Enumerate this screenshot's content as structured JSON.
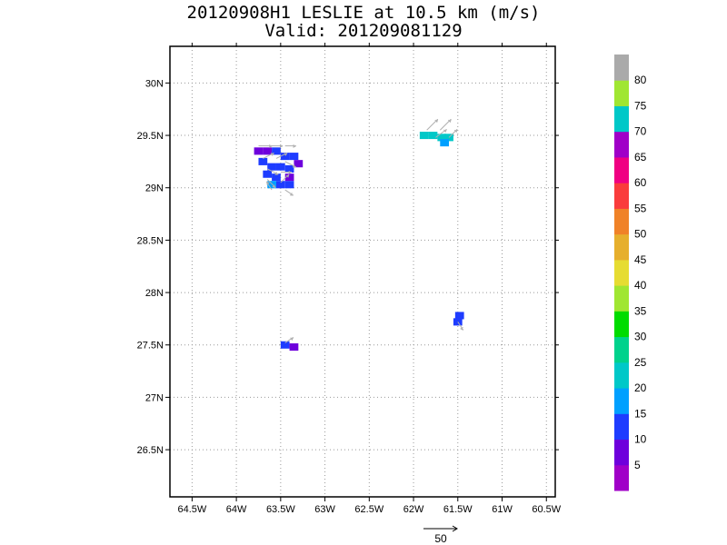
{
  "title_line1": "20120908H1 LESLIE at 10.5 km (m/s)",
  "title_line2": "Valid: 201209081129",
  "chart_data": {
    "type": "heatmap",
    "title": "20120908H1 LESLIE at 10.5 km (m/s)",
    "subtitle": "Valid: 201209081129",
    "xlim": [
      -64.75,
      -60.4
    ],
    "ylim": [
      26.05,
      30.35
    ],
    "x_ticks": [
      -64.5,
      -64,
      -63.5,
      -63,
      -62.5,
      -62,
      -61.5,
      -61,
      -60.5
    ],
    "x_tick_labels": [
      "64.5W",
      "64W",
      "63.5W",
      "63W",
      "62.5W",
      "62W",
      "61.5W",
      "61W",
      "60.5W"
    ],
    "y_ticks": [
      26.5,
      27,
      27.5,
      28,
      28.5,
      29,
      29.5,
      30
    ],
    "y_tick_labels": [
      "26.5N",
      "27N",
      "27.5N",
      "28N",
      "28.5N",
      "29N",
      "29.5N",
      "30N"
    ],
    "grid": "dotted",
    "colorbar": {
      "colors": [
        "#a000c8",
        "#6e00dc",
        "#1e3cff",
        "#00a0ff",
        "#00c8c8",
        "#00d28c",
        "#00dc00",
        "#a0e632",
        "#e6dc32",
        "#e6af2d",
        "#f08228",
        "#fa3c3c",
        "#f00082",
        "#a000c8",
        "#00c8c8",
        "#a0e632",
        "#aaaaaa"
      ],
      "labels": [
        "5",
        "10",
        "15",
        "20",
        "25",
        "30",
        "35",
        "40",
        "45",
        "50",
        "55",
        "60",
        "65",
        "70",
        "75",
        "80"
      ]
    },
    "cells": [
      {
        "x": -63.75,
        "y": 29.35,
        "v": 8
      },
      {
        "x": -63.65,
        "y": 29.35,
        "v": 7
      },
      {
        "x": -63.55,
        "y": 29.35,
        "v": 12
      },
      {
        "x": -63.45,
        "y": 29.3,
        "v": 13
      },
      {
        "x": -63.35,
        "y": 29.3,
        "v": 13
      },
      {
        "x": -63.3,
        "y": 29.23,
        "v": 8
      },
      {
        "x": -63.7,
        "y": 29.25,
        "v": 13
      },
      {
        "x": -63.6,
        "y": 29.2,
        "v": 13
      },
      {
        "x": -63.5,
        "y": 29.2,
        "v": 13
      },
      {
        "x": -63.4,
        "y": 29.18,
        "v": 14
      },
      {
        "x": -63.65,
        "y": 29.13,
        "v": 14
      },
      {
        "x": -63.55,
        "y": 29.1,
        "v": 13
      },
      {
        "x": -63.4,
        "y": 29.1,
        "v": 8
      },
      {
        "x": -63.6,
        "y": 29.03,
        "v": 18
      },
      {
        "x": -63.5,
        "y": 29.03,
        "v": 13
      },
      {
        "x": -63.4,
        "y": 29.03,
        "v": 13
      },
      {
        "x": -61.88,
        "y": 29.5,
        "v": 24
      },
      {
        "x": -61.78,
        "y": 29.5,
        "v": 22
      },
      {
        "x": -61.68,
        "y": 29.48,
        "v": 22
      },
      {
        "x": -61.6,
        "y": 29.48,
        "v": 24
      },
      {
        "x": -61.65,
        "y": 29.43,
        "v": 19
      },
      {
        "x": -63.45,
        "y": 27.5,
        "v": 13
      },
      {
        "x": -63.35,
        "y": 27.48,
        "v": 8
      },
      {
        "x": -61.5,
        "y": 27.72,
        "v": 13
      },
      {
        "x": -61.48,
        "y": 27.78,
        "v": 13
      }
    ],
    "vectors": [
      {
        "x": -63.75,
        "y": 29.4,
        "u": 5,
        "v": 0
      },
      {
        "x": -63.6,
        "y": 29.4,
        "u": 4,
        "v": 0
      },
      {
        "x": -63.45,
        "y": 29.4,
        "u": 4,
        "v": 0
      },
      {
        "x": -63.7,
        "y": 29.28,
        "u": 4,
        "v": -2
      },
      {
        "x": -63.55,
        "y": 29.28,
        "u": 4,
        "v": -2
      },
      {
        "x": -63.45,
        "y": 29.25,
        "u": 4,
        "v": 2
      },
      {
        "x": -63.65,
        "y": 29.18,
        "u": 4,
        "v": 2
      },
      {
        "x": -63.5,
        "y": 29.15,
        "u": 4,
        "v": 0
      },
      {
        "x": -63.65,
        "y": 29.08,
        "u": 3,
        "v": 3
      },
      {
        "x": -63.5,
        "y": 29.05,
        "u": 3,
        "v": -3
      },
      {
        "x": -63.6,
        "y": 28.98,
        "u": -2,
        "v": -3
      },
      {
        "x": -63.45,
        "y": 28.98,
        "u": 3,
        "v": 2
      },
      {
        "x": -61.85,
        "y": 29.55,
        "u": 4,
        "v": -4
      },
      {
        "x": -61.7,
        "y": 29.55,
        "u": 4,
        "v": -4
      },
      {
        "x": -61.75,
        "y": 29.48,
        "u": 4,
        "v": -3
      },
      {
        "x": -61.6,
        "y": 29.48,
        "u": 3,
        "v": -3
      },
      {
        "x": -63.45,
        "y": 27.52,
        "u": 3,
        "v": -2
      },
      {
        "x": -61.5,
        "y": 27.72,
        "u": 2,
        "v": 3
      }
    ],
    "reference_vector": {
      "value": "50",
      "label": "50"
    }
  }
}
